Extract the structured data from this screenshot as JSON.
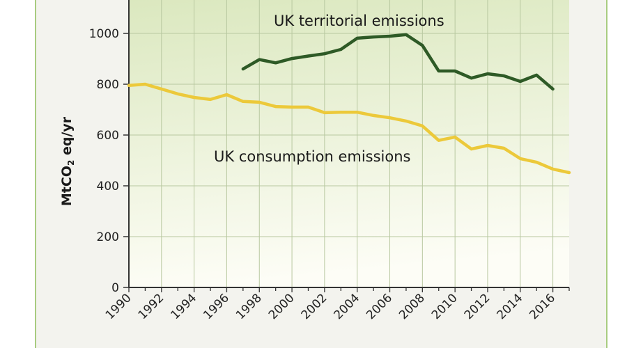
{
  "chart_data": {
    "type": "line",
    "title": "",
    "xlabel": "",
    "ylabel": "MtCO₂ eq/yr",
    "ylabel_main": "MtCO",
    "ylabel_sub": "2",
    "ylabel_tail": " eq/yr",
    "xlim": [
      1990,
      2017
    ],
    "ylim": [
      0,
      1150
    ],
    "grid": true,
    "yticks": [
      0,
      200,
      400,
      600,
      800,
      1000
    ],
    "ytick_labels": [
      "0",
      "200",
      "400",
      "600",
      "800",
      "1000"
    ],
    "xticks": [
      1990,
      1992,
      1994,
      1996,
      1998,
      2000,
      2002,
      2004,
      2006,
      2008,
      2010,
      2012,
      2014,
      2016
    ],
    "xtick_labels": [
      "1990",
      "1992",
      "1994",
      "1996",
      "1998",
      "2000",
      "2002",
      "2004",
      "2006",
      "2008",
      "2010",
      "2012",
      "2014",
      "2016"
    ],
    "series": [
      {
        "name": "UK territorial emissions",
        "color": "#2e5a26",
        "x": [
          1997,
          1998,
          1999,
          2000,
          2001,
          2002,
          2003,
          2004,
          2005,
          2006,
          2007,
          2008,
          2009,
          2010,
          2011,
          2012,
          2013,
          2014,
          2015,
          2016
        ],
        "values": [
          860,
          897,
          884,
          901,
          911,
          920,
          937,
          981,
          986,
          989,
          995,
          953,
          852,
          852,
          824,
          841,
          833,
          811,
          836,
          781
        ]
      },
      {
        "name": "UK consumption emissions",
        "color": "#ecc93a",
        "x": [
          1990,
          1991,
          1992,
          1993,
          1994,
          1995,
          1996,
          1997,
          1998,
          1999,
          2000,
          2001,
          2002,
          2003,
          2004,
          2005,
          2006,
          2007,
          2008,
          2009,
          2010,
          2011,
          2012,
          2013,
          2014,
          2015,
          2016,
          2017
        ],
        "values": [
          795,
          800,
          781,
          762,
          748,
          740,
          759,
          732,
          729,
          712,
          710,
          710,
          688,
          690,
          690,
          677,
          668,
          655,
          636,
          579,
          592,
          545,
          559,
          548,
          507,
          493,
          466,
          452
        ]
      }
    ],
    "colors": {
      "plot_top": "#dbe8bf",
      "plot_bottom": "#fdfdf6",
      "grid": "#b8c8a0",
      "axis": "#333333"
    }
  }
}
